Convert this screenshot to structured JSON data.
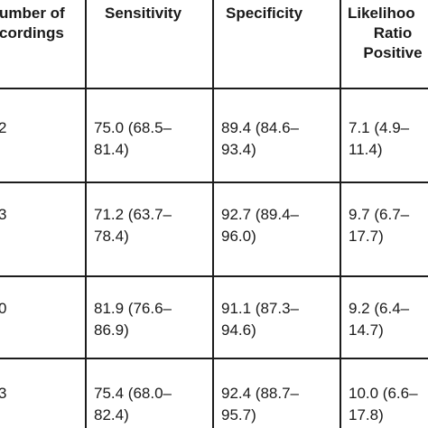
{
  "table": {
    "headers": {
      "recordings": [
        "umber of",
        "cordings"
      ],
      "sensitivity": [
        "Sensitivity"
      ],
      "specificity": [
        "Specificity"
      ],
      "lr_positive": [
        "Likelihoo",
        "Ratio",
        "Positive"
      ]
    },
    "rows": [
      {
        "recordings": "2",
        "sensitivity": [
          "75.0 (68.5–",
          "81.4)"
        ],
        "specificity": [
          "89.4 (84.6–",
          "93.4)"
        ],
        "lr_positive": [
          "7.1 (4.9–",
          "11.4)"
        ]
      },
      {
        "recordings": "3",
        "sensitivity": [
          "71.2 (63.7–",
          "78.4)"
        ],
        "specificity": [
          "92.7 (89.4–",
          "96.0)"
        ],
        "lr_positive": [
          "9.7 (6.7–",
          "17.7)"
        ]
      },
      {
        "recordings": "0",
        "sensitivity": [
          "81.9 (76.6–",
          "86.9)"
        ],
        "specificity": [
          "91.1 (87.3–",
          "94.6)"
        ],
        "lr_positive": [
          "9.2 (6.4–",
          "14.7)"
        ]
      },
      {
        "recordings": "3",
        "sensitivity": [
          "75.4 (68.0–",
          "82.4)"
        ],
        "specificity": [
          "92.4 (88.7–",
          "95.7)"
        ],
        "lr_positive": [
          "10.0 (6.6–",
          "17.8)"
        ]
      }
    ]
  }
}
